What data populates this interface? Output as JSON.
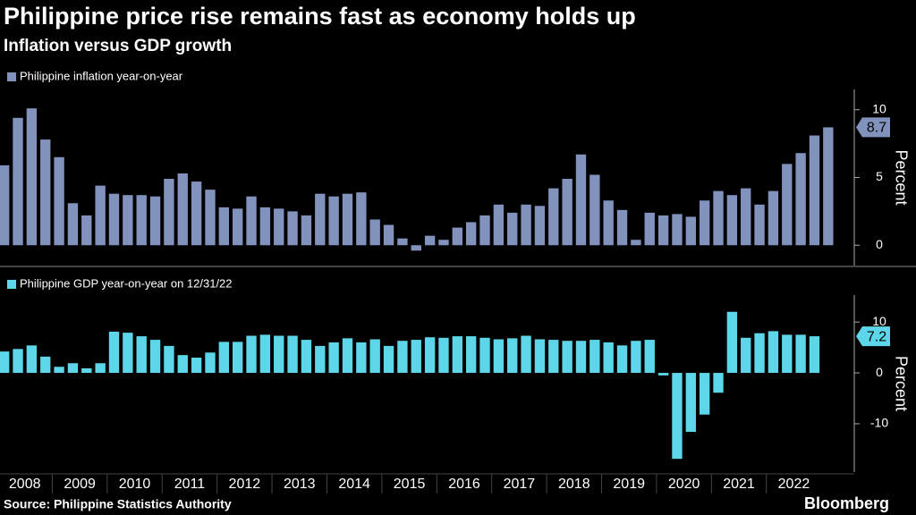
{
  "title": "Philippine price rise remains fast as economy holds up",
  "subtitle": "Inflation versus GDP growth",
  "source": "Source: Philippine Statistics Authority",
  "brand": "Bloomberg",
  "chart_data": [
    {
      "type": "bar",
      "x": [
        2008,
        2008.25,
        2008.5,
        2008.75,
        2009,
        2009.25,
        2009.5,
        2009.75,
        2010,
        2010.25,
        2010.5,
        2010.75,
        2011,
        2011.25,
        2011.5,
        2011.75,
        2012,
        2012.25,
        2012.5,
        2012.75,
        2013,
        2013.25,
        2013.5,
        2013.75,
        2014,
        2014.25,
        2014.5,
        2014.75,
        2015,
        2015.25,
        2015.5,
        2015.75,
        2016,
        2016.25,
        2016.5,
        2016.75,
        2017,
        2017.25,
        2017.5,
        2017.75,
        2018,
        2018.25,
        2018.5,
        2018.75,
        2019,
        2019.25,
        2019.5,
        2019.75,
        2020,
        2020.25,
        2020.5,
        2020.75,
        2021,
        2021.25,
        2021.5,
        2021.75,
        2022,
        2022.25,
        2022.5,
        2022.75,
        2023
      ],
      "series": [
        {
          "name": "Philippine inflation year-on-year",
          "color": "#8193bd",
          "values": [
            5.9,
            9.4,
            10.1,
            7.8,
            6.5,
            3.1,
            2.2,
            4.4,
            3.8,
            3.7,
            3.7,
            3.6,
            4.9,
            5.3,
            4.7,
            4.1,
            2.8,
            2.7,
            3.6,
            2.8,
            2.7,
            2.5,
            2.2,
            3.8,
            3.6,
            3.8,
            3.9,
            1.9,
            1.5,
            0.5,
            -0.4,
            0.7,
            0.4,
            1.3,
            1.7,
            2.2,
            3.0,
            2.4,
            3.0,
            2.9,
            4.2,
            4.9,
            6.7,
            5.2,
            3.3,
            2.6,
            0.4,
            2.4,
            2.2,
            2.3,
            2.1,
            3.3,
            4.0,
            3.7,
            4.2,
            3.0,
            4.0,
            6.0,
            6.8,
            8.1,
            8.7
          ]
        }
      ],
      "xlim": [
        2008,
        2023.6
      ],
      "ylim": [
        -1.5,
        11.5
      ],
      "yticks": [
        0,
        5,
        10
      ],
      "ylabel": "Percent",
      "last_value_callout": true
    },
    {
      "type": "bar",
      "x": [
        2008,
        2008.25,
        2008.5,
        2008.75,
        2009,
        2009.25,
        2009.5,
        2009.75,
        2010,
        2010.25,
        2010.5,
        2010.75,
        2011,
        2011.25,
        2011.5,
        2011.75,
        2012,
        2012.25,
        2012.5,
        2012.75,
        2013,
        2013.25,
        2013.5,
        2013.75,
        2014,
        2014.25,
        2014.5,
        2014.75,
        2015,
        2015.25,
        2015.5,
        2015.75,
        2016,
        2016.25,
        2016.5,
        2016.75,
        2017,
        2017.25,
        2017.5,
        2017.75,
        2018,
        2018.25,
        2018.5,
        2018.75,
        2019,
        2019.25,
        2019.5,
        2019.75,
        2020,
        2020.25,
        2020.5,
        2020.75,
        2021,
        2021.25,
        2021.5,
        2021.75,
        2022,
        2022.25,
        2022.5,
        2022.75
      ],
      "series": [
        {
          "name": "Philippine GDP year-on-year on 12/31/22",
          "color": "#5cd6e8",
          "values": [
            4.2,
            4.7,
            5.4,
            3.2,
            1.2,
            1.9,
            0.9,
            1.9,
            8.1,
            7.9,
            7.2,
            6.5,
            5.3,
            3.5,
            3.0,
            4.0,
            6.1,
            6.1,
            7.3,
            7.5,
            7.3,
            7.3,
            6.5,
            5.3,
            6.0,
            6.8,
            6.0,
            6.6,
            5.3,
            6.3,
            6.5,
            7.0,
            6.9,
            7.2,
            7.2,
            6.9,
            6.6,
            6.8,
            7.3,
            6.6,
            6.5,
            6.3,
            6.3,
            6.5,
            6.0,
            5.4,
            6.3,
            6.5,
            -0.5,
            -16.9,
            -11.6,
            -8.2,
            -3.9,
            12.0,
            6.9,
            7.8,
            8.2,
            7.5,
            7.5,
            7.2
          ]
        }
      ],
      "xlim": [
        2008,
        2023.6
      ],
      "ylim": [
        -19.5,
        15.3
      ],
      "yticks": [
        -10,
        0,
        10
      ],
      "xticks": [
        2008,
        2009,
        2010,
        2011,
        2012,
        2013,
        2014,
        2015,
        2016,
        2017,
        2018,
        2019,
        2020,
        2021,
        2022
      ],
      "ylabel": "Percent",
      "last_value_callout": true
    }
  ]
}
